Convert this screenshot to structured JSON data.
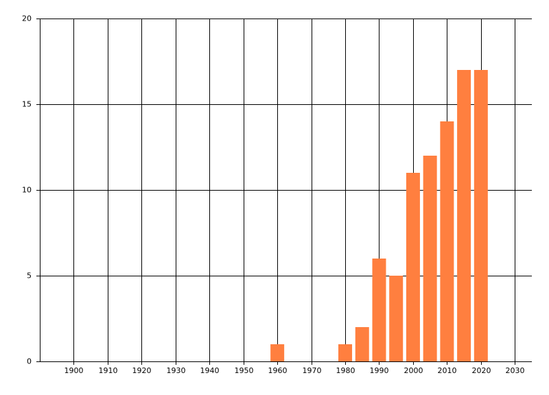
{
  "chart_data": {
    "type": "bar",
    "x": [
      1960,
      1980,
      1985,
      1990,
      1995,
      2000,
      2005,
      2010,
      2015,
      2020
    ],
    "values": [
      1,
      1,
      2,
      6,
      5,
      11,
      12,
      14,
      17,
      17
    ],
    "color": "#ff7f3f",
    "xlim": [
      1890,
      2035
    ],
    "xticks": [
      1900,
      1910,
      1920,
      1930,
      1940,
      1950,
      1960,
      1970,
      1980,
      1990,
      2000,
      2010,
      2020,
      2030
    ],
    "ylim": [
      0,
      20
    ],
    "yticks": [
      0,
      5,
      10,
      15,
      20
    ],
    "grid": true
  }
}
